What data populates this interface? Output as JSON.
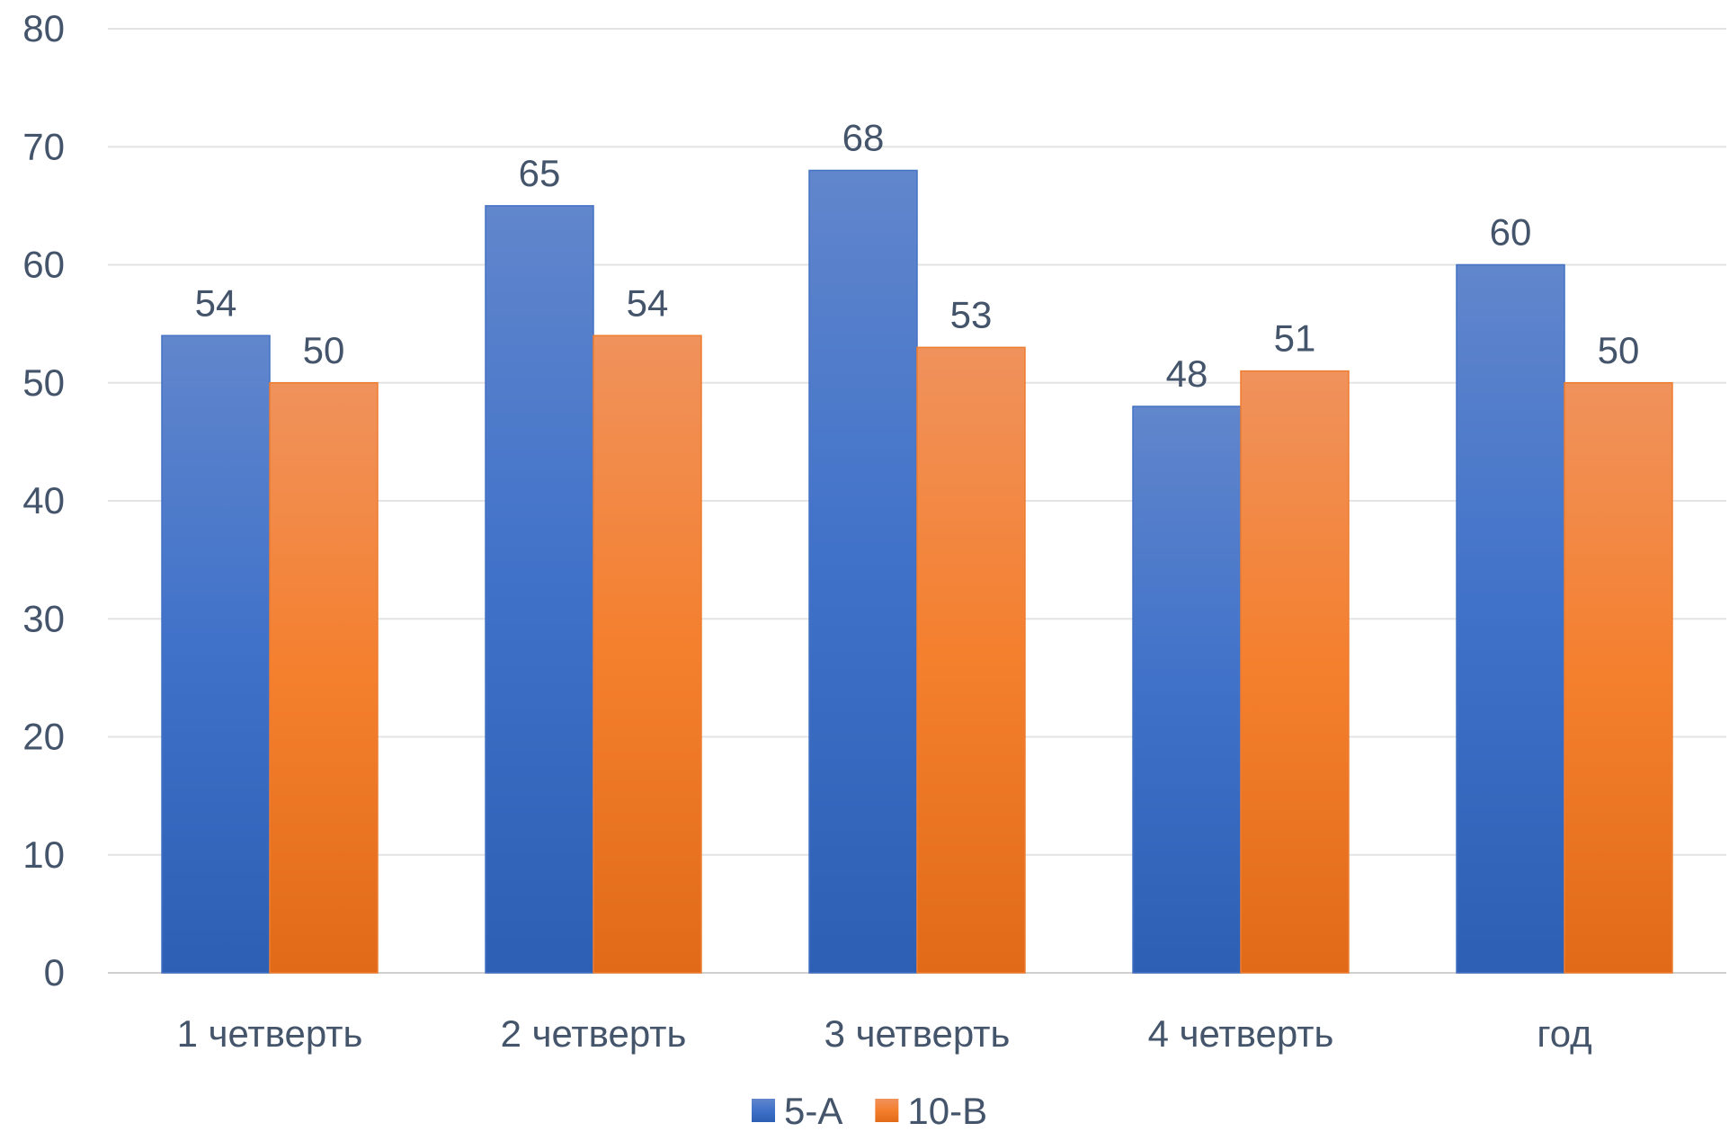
{
  "chart_data": {
    "type": "bar",
    "categories": [
      "1 четверть",
      "2 четверть",
      "3 четверть",
      "4 четверть",
      "год"
    ],
    "series": [
      {
        "name": "5-А",
        "values": [
          54,
          65,
          68,
          48,
          60
        ],
        "color": "#4472c4"
      },
      {
        "name": "10-В",
        "values": [
          50,
          54,
          53,
          51,
          50
        ],
        "color": "#ed7d31"
      }
    ],
    "ylim": [
      0,
      80
    ],
    "yticks": [
      0,
      10,
      20,
      30,
      40,
      50,
      60,
      70,
      80
    ],
    "grid": true,
    "data_labels": true,
    "legend_position": "bottom"
  }
}
